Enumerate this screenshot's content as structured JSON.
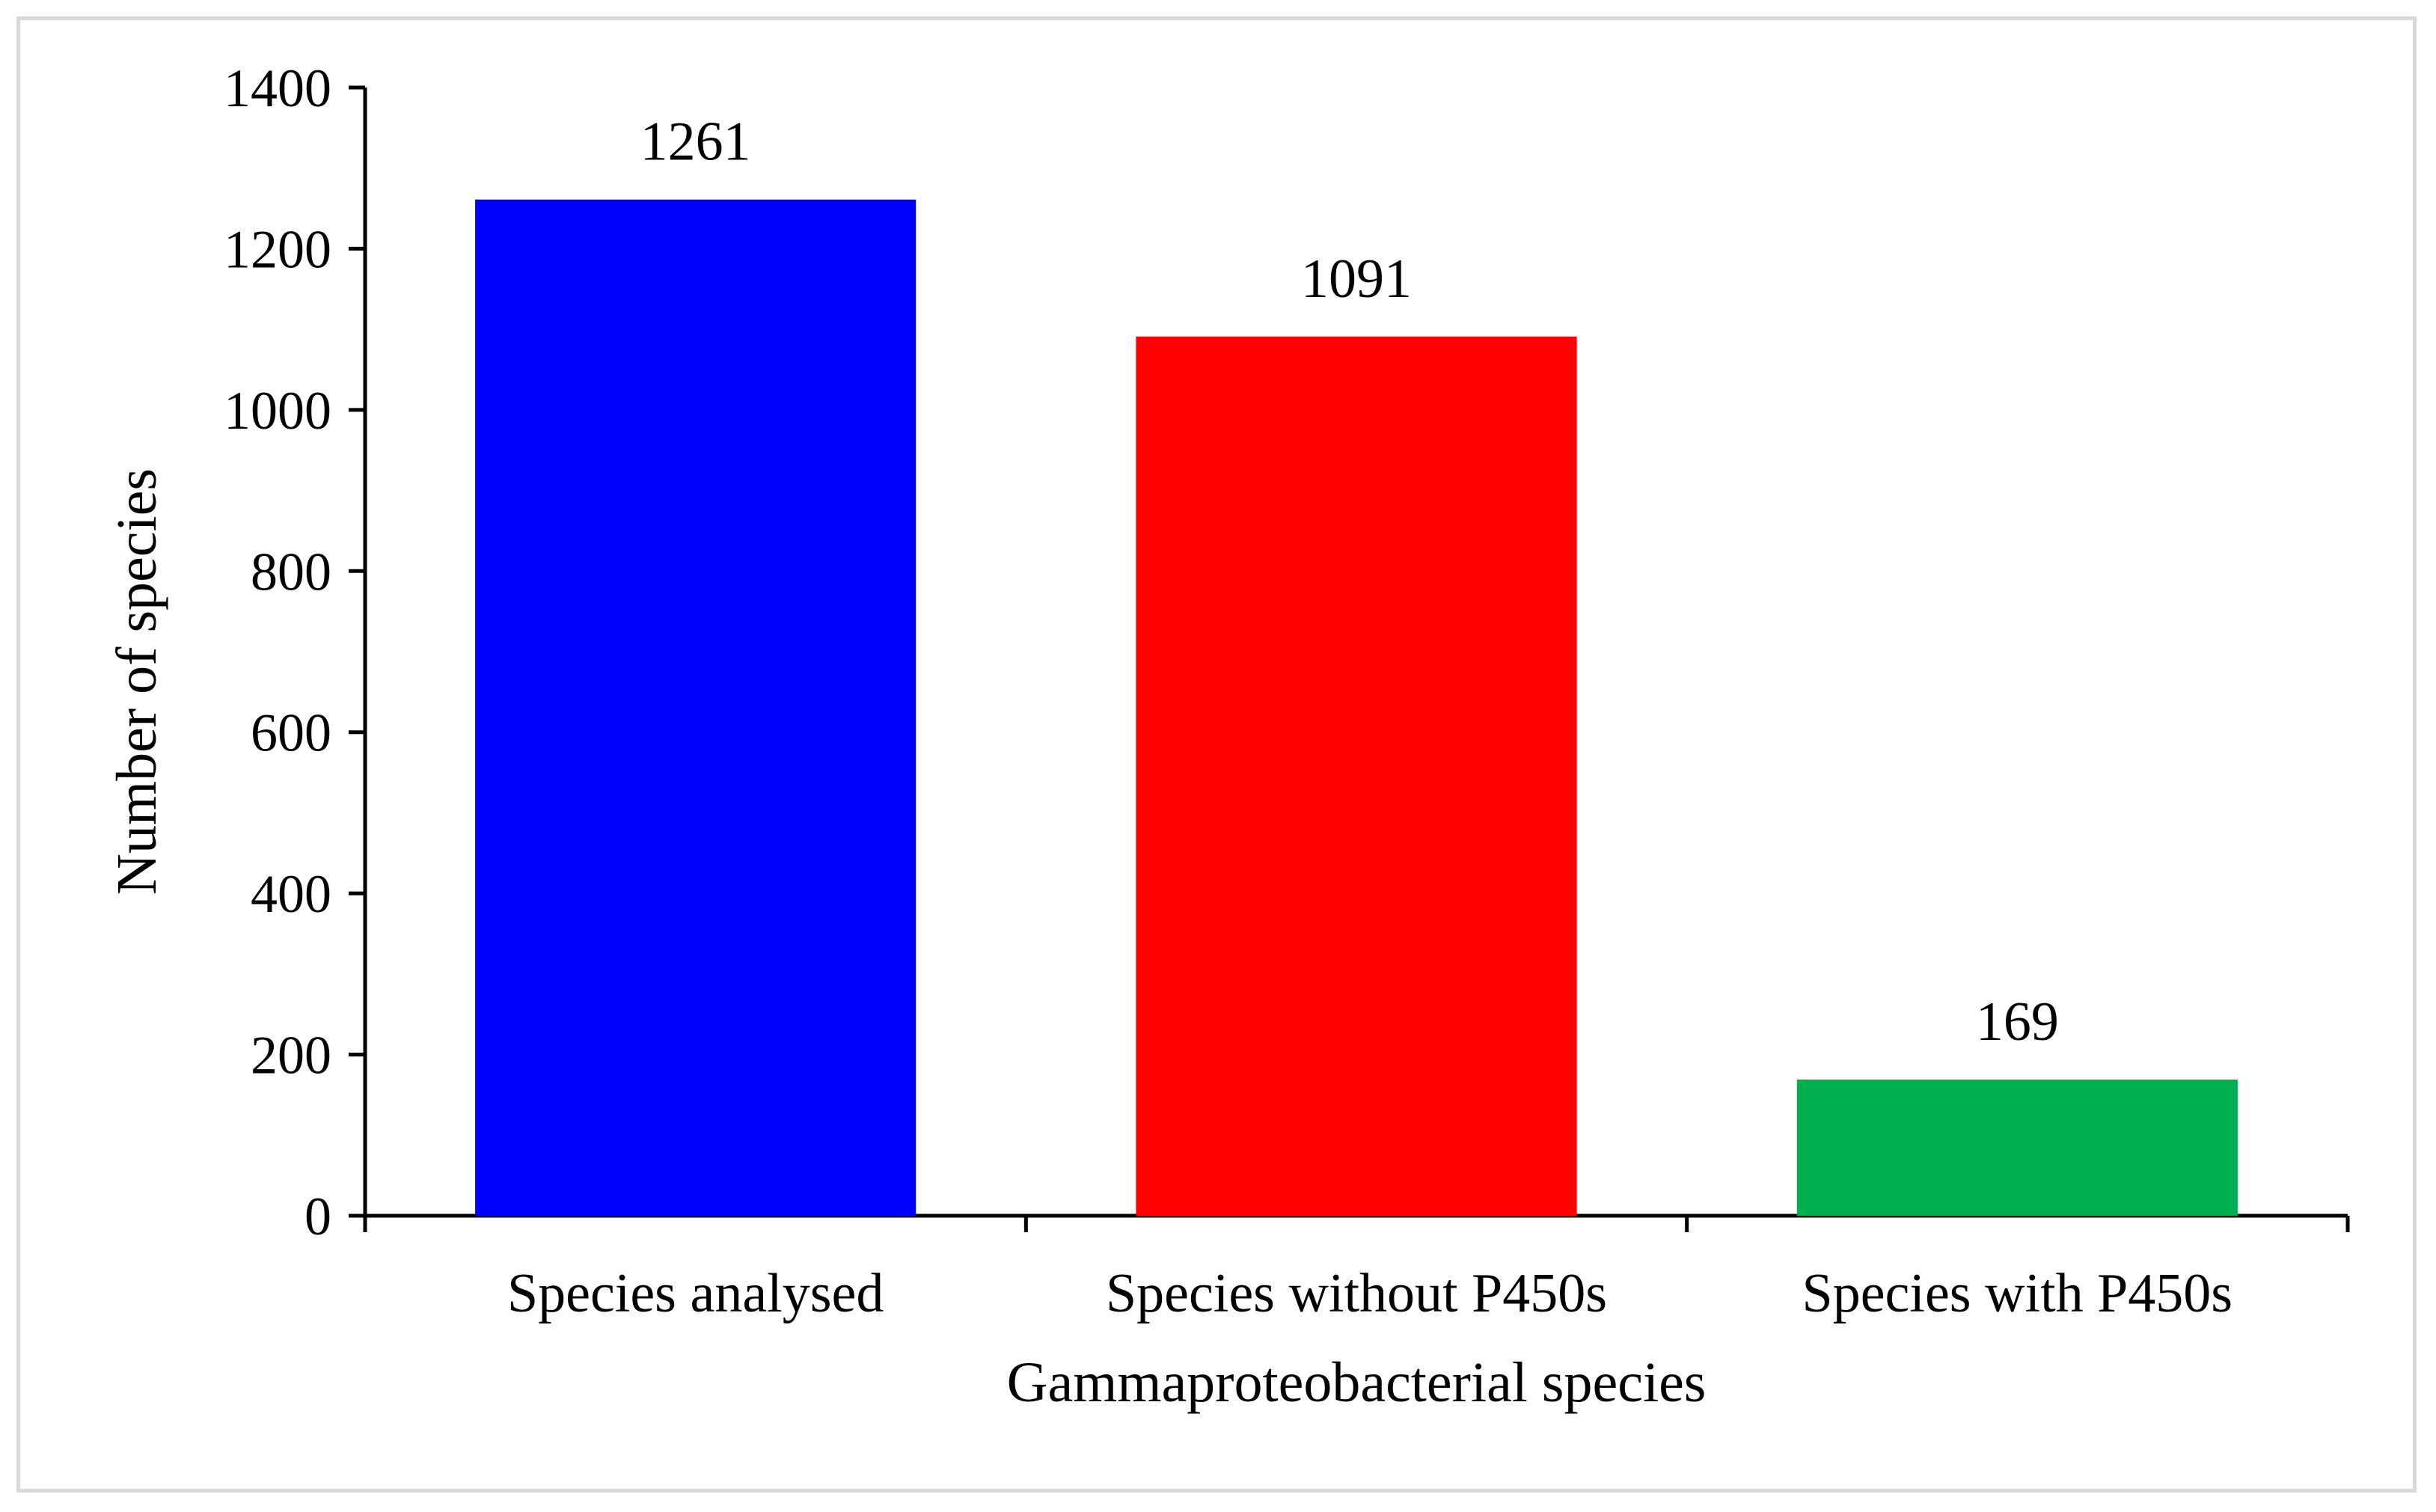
{
  "chart_data": {
    "type": "bar",
    "title": "",
    "xlabel": "Gammaproteobacterial species",
    "ylabel": "Number of species",
    "categories": [
      "Species analysed",
      "Species without P450s",
      "Species with P450s"
    ],
    "values": [
      1261,
      1091,
      169
    ],
    "data_labels": [
      "1261",
      "1091",
      "169"
    ],
    "colors": [
      "#0000FF",
      "#FF0000",
      "#00B050"
    ],
    "ylim": [
      0,
      1400
    ],
    "yticks": [
      0,
      200,
      400,
      600,
      800,
      1000,
      1200,
      1400
    ],
    "ytick_labels": [
      "0",
      "200",
      "400",
      "600",
      "800",
      "1000",
      "1200",
      "1400"
    ],
    "grid": false,
    "legend": "none"
  }
}
